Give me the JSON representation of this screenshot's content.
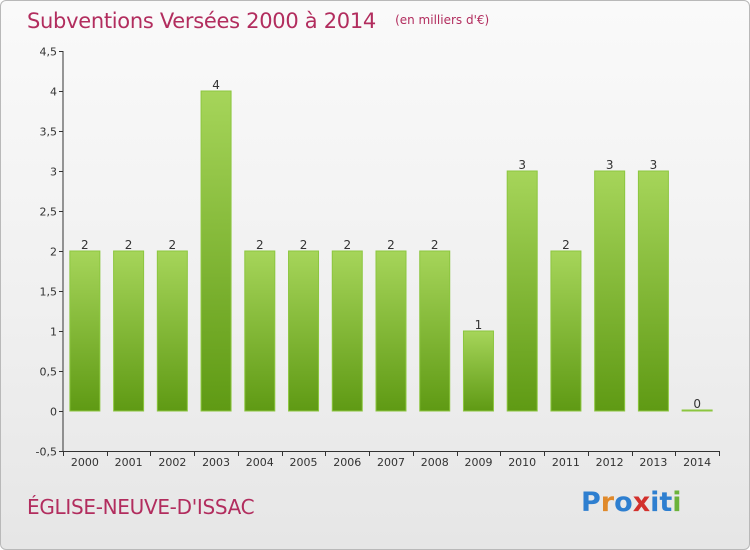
{
  "header": {
    "title": "Subventions Versées 2000 à 2014",
    "subtitle": "(en milliers d'€)"
  },
  "footer": {
    "commune": "ÉGLISE-NEUVE-D'ISSAC",
    "brand": "Proxiti"
  },
  "colors": {
    "title": "#b22d5e",
    "bar_light": "#a6d55a",
    "bar_dark": "#5f9a14",
    "brand_letters": [
      "#2e7fd0",
      "#e0892a",
      "#2e7fd0",
      "#d2302c",
      "#2e7fd0",
      "#2e7fd0",
      "#6bb33a"
    ]
  },
  "chart_data": {
    "type": "bar",
    "categories": [
      "2000",
      "2001",
      "2002",
      "2003",
      "2004",
      "2005",
      "2006",
      "2007",
      "2008",
      "2009",
      "2010",
      "2011",
      "2012",
      "2013",
      "2014"
    ],
    "values": [
      2,
      2,
      2,
      4,
      2,
      2,
      2,
      2,
      2,
      1,
      3,
      2,
      3,
      3,
      0
    ],
    "data_labels": [
      "2",
      "2",
      "2",
      "4",
      "2",
      "2",
      "2",
      "2",
      "2",
      "1",
      "3",
      "2",
      "3",
      "3",
      "0"
    ],
    "y_ticks": [
      -0.5,
      0,
      0.5,
      1,
      1.5,
      2,
      2.5,
      3,
      3.5,
      4,
      4.5
    ],
    "y_tick_labels": [
      "-0,5",
      "0",
      "0,5",
      "1",
      "1,5",
      "2",
      "2,5",
      "3",
      "3,5",
      "4",
      "4,5"
    ],
    "ylim": [
      -0.5,
      4.5
    ],
    "xlabel": "",
    "ylabel": "",
    "grid": false
  }
}
